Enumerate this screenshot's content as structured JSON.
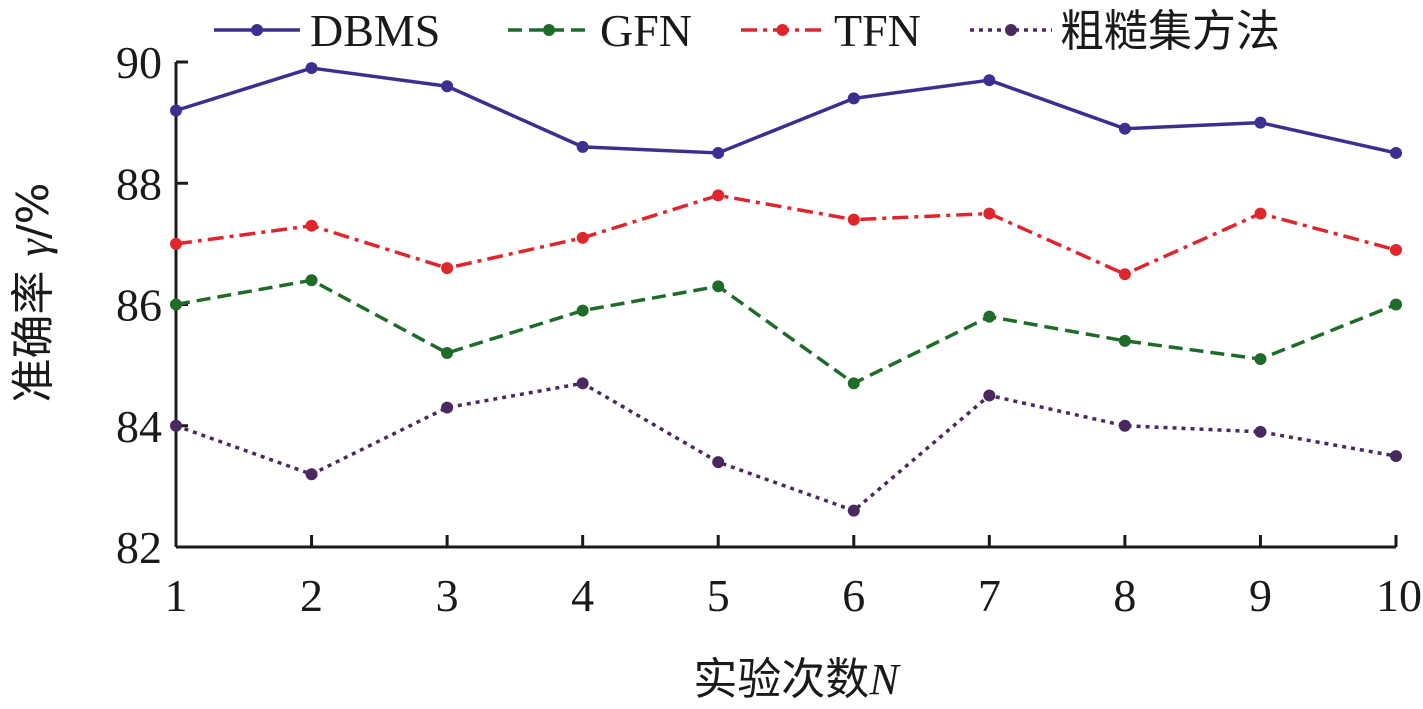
{
  "chart_data": {
    "type": "line",
    "title": "",
    "xlabel": "实验次数N",
    "xlabel_parts": {
      "text": "实验次数",
      "var": "N"
    },
    "ylabel": "准确率 γ/%",
    "ylabel_parts": {
      "text": "准确率 ",
      "var": "γ",
      "unit": "/%"
    },
    "x": [
      1,
      2,
      3,
      4,
      5,
      6,
      7,
      8,
      9,
      10
    ],
    "x_tick_labels": [
      "1",
      "2",
      "3",
      "4",
      "5",
      "6",
      "7",
      "8",
      "9",
      "10"
    ],
    "xlim": [
      1,
      10
    ],
    "ylim": [
      82,
      90
    ],
    "y_ticks": [
      82,
      84,
      86,
      88,
      90
    ],
    "y_tick_labels": [
      "82",
      "84",
      "86",
      "88",
      "90"
    ],
    "grid": false,
    "legend_position": "top",
    "series": [
      {
        "name": "DBMS",
        "color": "#3b2f8f",
        "dash": "solid",
        "values": [
          89.2,
          89.9,
          89.6,
          88.6,
          88.5,
          89.4,
          89.7,
          88.9,
          89.0,
          88.5
        ]
      },
      {
        "name": "GFN",
        "color": "#1f6b2a",
        "dash": "dashed",
        "values": [
          86.0,
          86.4,
          85.2,
          85.9,
          86.3,
          84.7,
          85.8,
          85.4,
          85.1,
          86.0
        ]
      },
      {
        "name": "TFN",
        "color": "#e0262d",
        "dash": "dashdot",
        "values": [
          87.0,
          87.3,
          86.6,
          87.1,
          87.8,
          87.4,
          87.5,
          86.5,
          87.5,
          86.9
        ]
      },
      {
        "name": "粗糙集方法",
        "color": "#4a2860",
        "dash": "dotted",
        "values": [
          84.0,
          83.2,
          84.3,
          84.7,
          83.4,
          82.6,
          84.5,
          84.0,
          83.9,
          83.5
        ]
      }
    ]
  }
}
